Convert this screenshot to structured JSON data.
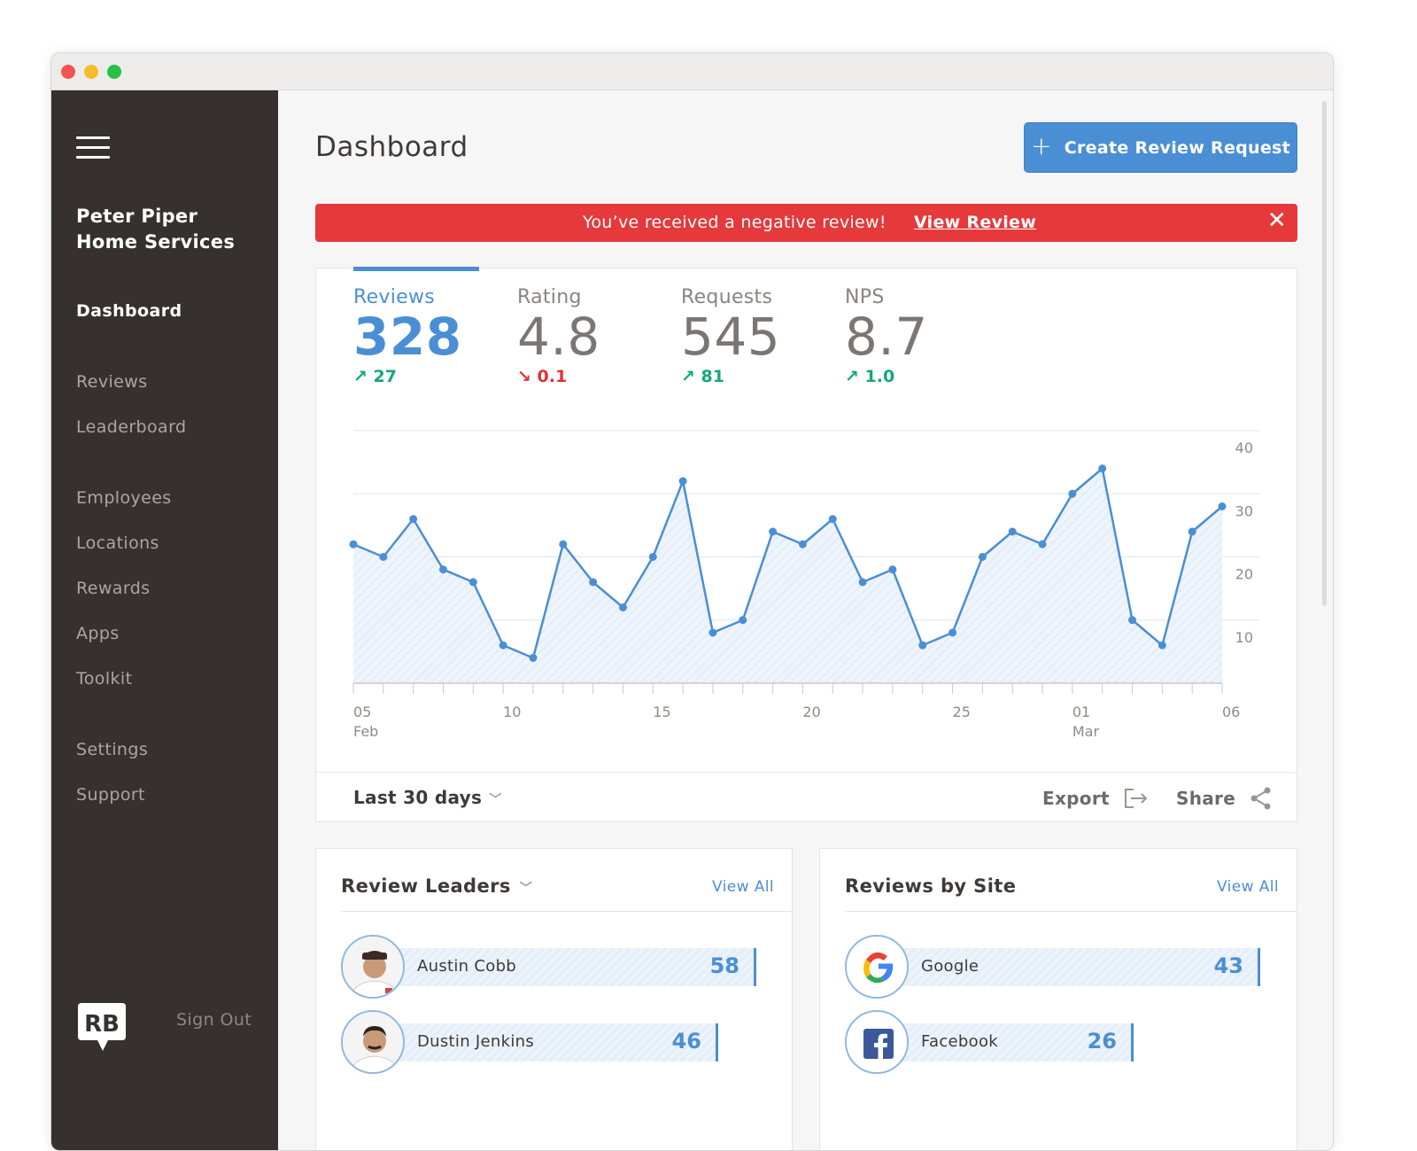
{
  "sidebar": {
    "company_line1": "Peter Piper",
    "company_line2": "Home Services",
    "items": [
      {
        "label": "Dashboard"
      },
      {
        "label": "Reviews"
      },
      {
        "label": "Leaderboard"
      },
      {
        "label": "Employees"
      },
      {
        "label": "Locations"
      },
      {
        "label": "Rewards"
      },
      {
        "label": "Apps"
      },
      {
        "label": "Toolkit"
      },
      {
        "label": "Settings"
      },
      {
        "label": "Support"
      }
    ],
    "signout_label": "Sign Out",
    "logo_text": "RB"
  },
  "header": {
    "title": "Dashboard",
    "create_button_label": "Create Review Request",
    "create_button_icon": "plus-icon"
  },
  "alert": {
    "message": "You’ve received a negative review!",
    "link_label": "View Review",
    "close_glyph": "✕",
    "color": "#e5393b"
  },
  "metrics": [
    {
      "label": "Reviews",
      "value": "328",
      "change": "27",
      "direction": "up"
    },
    {
      "label": "Rating",
      "value": "4.8",
      "change": "0.1",
      "direction": "down"
    },
    {
      "label": "Requests",
      "value": "545",
      "change": "81",
      "direction": "up"
    },
    {
      "label": "NPS",
      "value": "8.7",
      "change": "1.0",
      "direction": "up"
    }
  ],
  "chart_data": {
    "type": "area",
    "x": [
      5,
      6,
      7,
      8,
      9,
      10,
      11,
      12,
      13,
      14,
      15,
      16,
      17,
      18,
      19,
      20,
      21,
      22,
      23,
      24,
      25,
      26,
      27,
      28,
      29,
      30,
      31,
      32,
      33,
      34
    ],
    "values": [
      22,
      20,
      26,
      18,
      16,
      6,
      4,
      22,
      16,
      12,
      20,
      32,
      8,
      10,
      24,
      22,
      26,
      16,
      18,
      6,
      8,
      20,
      24,
      22,
      30,
      34,
      10,
      6,
      24,
      28
    ],
    "tick_labels": [
      {
        "x": 5,
        "line1": "05",
        "line2": "Feb"
      },
      {
        "x": 10,
        "line1": "10",
        "line2": ""
      },
      {
        "x": 15,
        "line1": "15",
        "line2": ""
      },
      {
        "x": 20,
        "line1": "20",
        "line2": ""
      },
      {
        "x": 25,
        "line1": "25",
        "line2": ""
      },
      {
        "x": 29,
        "line1": "01",
        "line2": "Mar"
      },
      {
        "x": 34,
        "line1": "06",
        "line2": ""
      }
    ],
    "y_ticks": [
      40,
      30,
      20,
      10
    ],
    "ylim": [
      0,
      40
    ],
    "line_color": "#4a8fd4",
    "grid": true
  },
  "footer": {
    "range_label": "Last 30 days",
    "export_label": "Export",
    "share_label": "Share"
  },
  "leaders": {
    "title": "Review Leaders",
    "view_all": "View All",
    "rows": [
      {
        "name": "Austin Cobb",
        "value": "58",
        "count": 58
      },
      {
        "name": "Dustin Jenkins",
        "value": "46",
        "count": 46
      }
    ]
  },
  "sites": {
    "title": "Reviews by Site",
    "view_all": "View All",
    "rows": [
      {
        "name": "Google",
        "value": "43",
        "count": 43,
        "icon": "google-icon"
      },
      {
        "name": "Facebook",
        "value": "26",
        "count": 26,
        "icon": "facebook-icon"
      }
    ]
  },
  "colors": {
    "accent": "#4a8fd4",
    "sidebar": "#36312e",
    "positive": "#17a779",
    "negative": "#e03333"
  }
}
